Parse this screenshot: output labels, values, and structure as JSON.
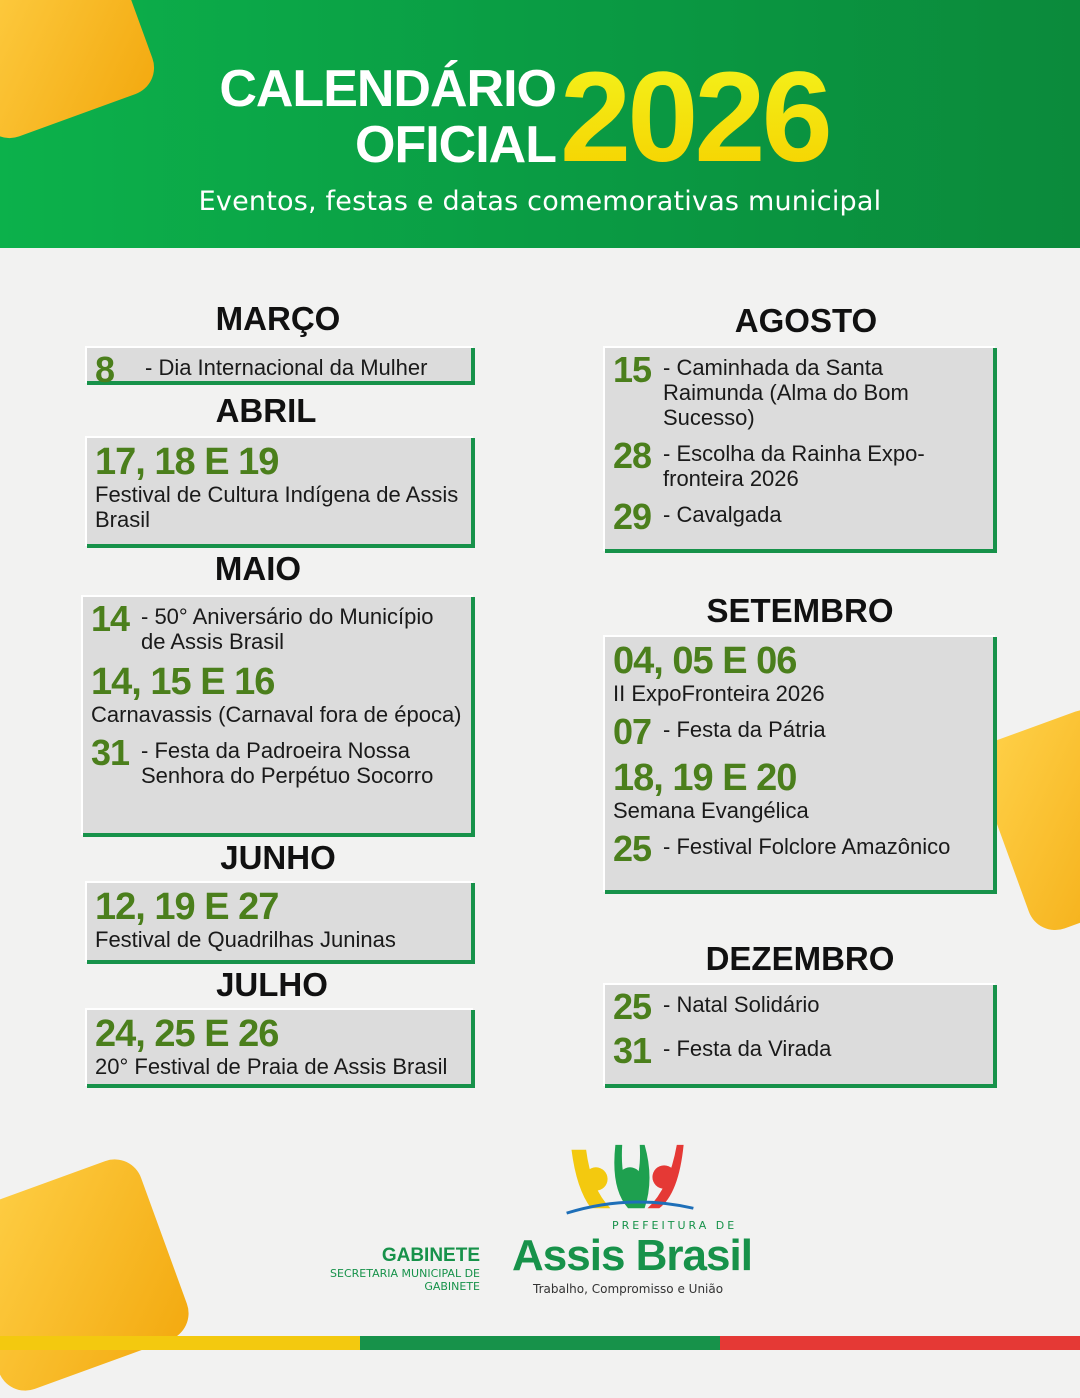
{
  "header": {
    "title_line1": "CALENDÁRIO",
    "title_line2": "OFICIAL",
    "year": "2026",
    "subtitle": "Eventos, festas e datas comemorativas municipal"
  },
  "months": [
    {
      "name": "MARÇO",
      "events": [
        {
          "style": "inline",
          "num": "8",
          "text": "- Dia Internacional da Mulher"
        }
      ]
    },
    {
      "name": "ABRIL",
      "events": [
        {
          "style": "block",
          "num": "17, 18 E 19",
          "text": "Festival de Cultura Indígena de Assis Brasil"
        }
      ]
    },
    {
      "name": "MAIO",
      "events": [
        {
          "style": "inline",
          "num": "14",
          "text": "- 50° Aniversário do Município de Assis Brasil"
        },
        {
          "style": "block",
          "num": "14, 15 E 16",
          "text": "Carnavassis (Carnaval fora de época)"
        },
        {
          "style": "inline",
          "num": "31",
          "text": "- Festa da Padroeira Nossa Senhora do Perpétuo Socorro"
        }
      ]
    },
    {
      "name": "JUNHO",
      "events": [
        {
          "style": "block",
          "num": "12, 19 E 27",
          "text": "Festival de Quadrilhas Juninas"
        }
      ]
    },
    {
      "name": "JULHO",
      "events": [
        {
          "style": "block",
          "num": "24, 25 E 26",
          "text": "20° Festival de Praia de Assis Brasil"
        }
      ]
    },
    {
      "name": "AGOSTO",
      "events": [
        {
          "style": "inline",
          "num": "15",
          "text": "- Caminhada da Santa Raimunda (Alma do Bom Sucesso)"
        },
        {
          "style": "inline",
          "num": "28",
          "text": "- Escolha da Rainha Expo-fronteira 2026"
        },
        {
          "style": "inline",
          "num": "29",
          "text": "- Cavalgada"
        }
      ]
    },
    {
      "name": "SETEMBRO",
      "events": [
        {
          "style": "block",
          "num": "04, 05 E 06",
          "text": "II ExpoFronteira 2026"
        },
        {
          "style": "inline",
          "num": "07",
          "text": "- Festa da Pátria"
        },
        {
          "style": "block",
          "num": "18, 19 E 20",
          "text": "Semana Evangélica"
        },
        {
          "style": "inline",
          "num": "25",
          "text": "- Festival Folclore Amazônico"
        }
      ]
    },
    {
      "name": "DEZEMBRO",
      "events": [
        {
          "style": "inline",
          "num": "25",
          "text": "- Natal Solidário"
        },
        {
          "style": "inline",
          "num": "31",
          "text": "- Festa da Virada"
        }
      ]
    }
  ],
  "footer": {
    "department_title": "GABINETE",
    "department_sub": "SECRETARIA MUNICIPAL DE GABINETE",
    "logo_prefix": "PREFEITURA DE",
    "logo_name": "Assis Brasil",
    "logo_tagline": "Trabalho, Compromisso e União"
  },
  "colors": {
    "green": "#17924a",
    "date_green": "#4b7f1c",
    "yellow": "#f3c90f",
    "red": "#e53935",
    "box": "#dcdcdc"
  }
}
